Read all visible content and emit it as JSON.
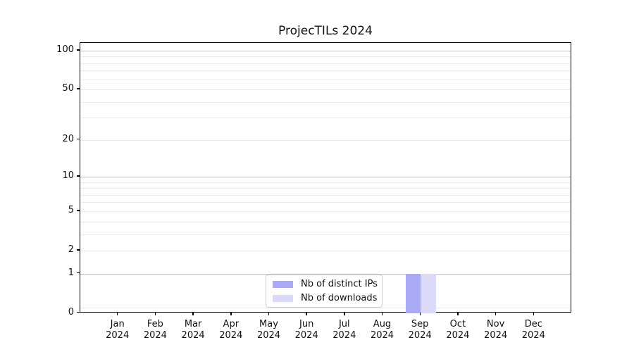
{
  "chart_data": {
    "type": "bar",
    "title": "ProjecTILs 2024",
    "categories": [
      "Jan 2024",
      "Feb 2024",
      "Mar 2024",
      "Apr 2024",
      "May 2024",
      "Jun 2024",
      "Jul 2024",
      "Aug 2024",
      "Sep 2024",
      "Oct 2024",
      "Nov 2024",
      "Dec 2024"
    ],
    "series": [
      {
        "name": "Nb of distinct IPs",
        "color": "#a9a9f4",
        "values": [
          0,
          0,
          0,
          0,
          0,
          0,
          0,
          0,
          1,
          0,
          0,
          0
        ]
      },
      {
        "name": "Nb of downloads",
        "color": "#dadaf8",
        "values": [
          0,
          0,
          0,
          0,
          0,
          0,
          0,
          0,
          1,
          0,
          0,
          0
        ]
      }
    ],
    "xlabel": "",
    "ylabel": "",
    "yscale": "log1p",
    "ylim": [
      0,
      114
    ],
    "yticks": [
      0,
      1,
      2,
      5,
      10,
      20,
      50,
      100
    ],
    "grid": {
      "major_lines": [
        1,
        10,
        100
      ],
      "minor_lines": [
        0.1,
        2,
        3,
        4,
        5,
        6,
        7,
        8,
        9,
        20,
        30,
        40,
        50,
        60,
        70,
        80,
        90
      ]
    },
    "legend": {
      "position": "lower center",
      "entries": [
        "Nb of distinct IPs",
        "Nb of downloads"
      ]
    },
    "colors": {
      "major_grid": "#c2c2c2",
      "minor_grid": "#ebebeb",
      "spine": "#000000",
      "text": "#111111"
    }
  }
}
